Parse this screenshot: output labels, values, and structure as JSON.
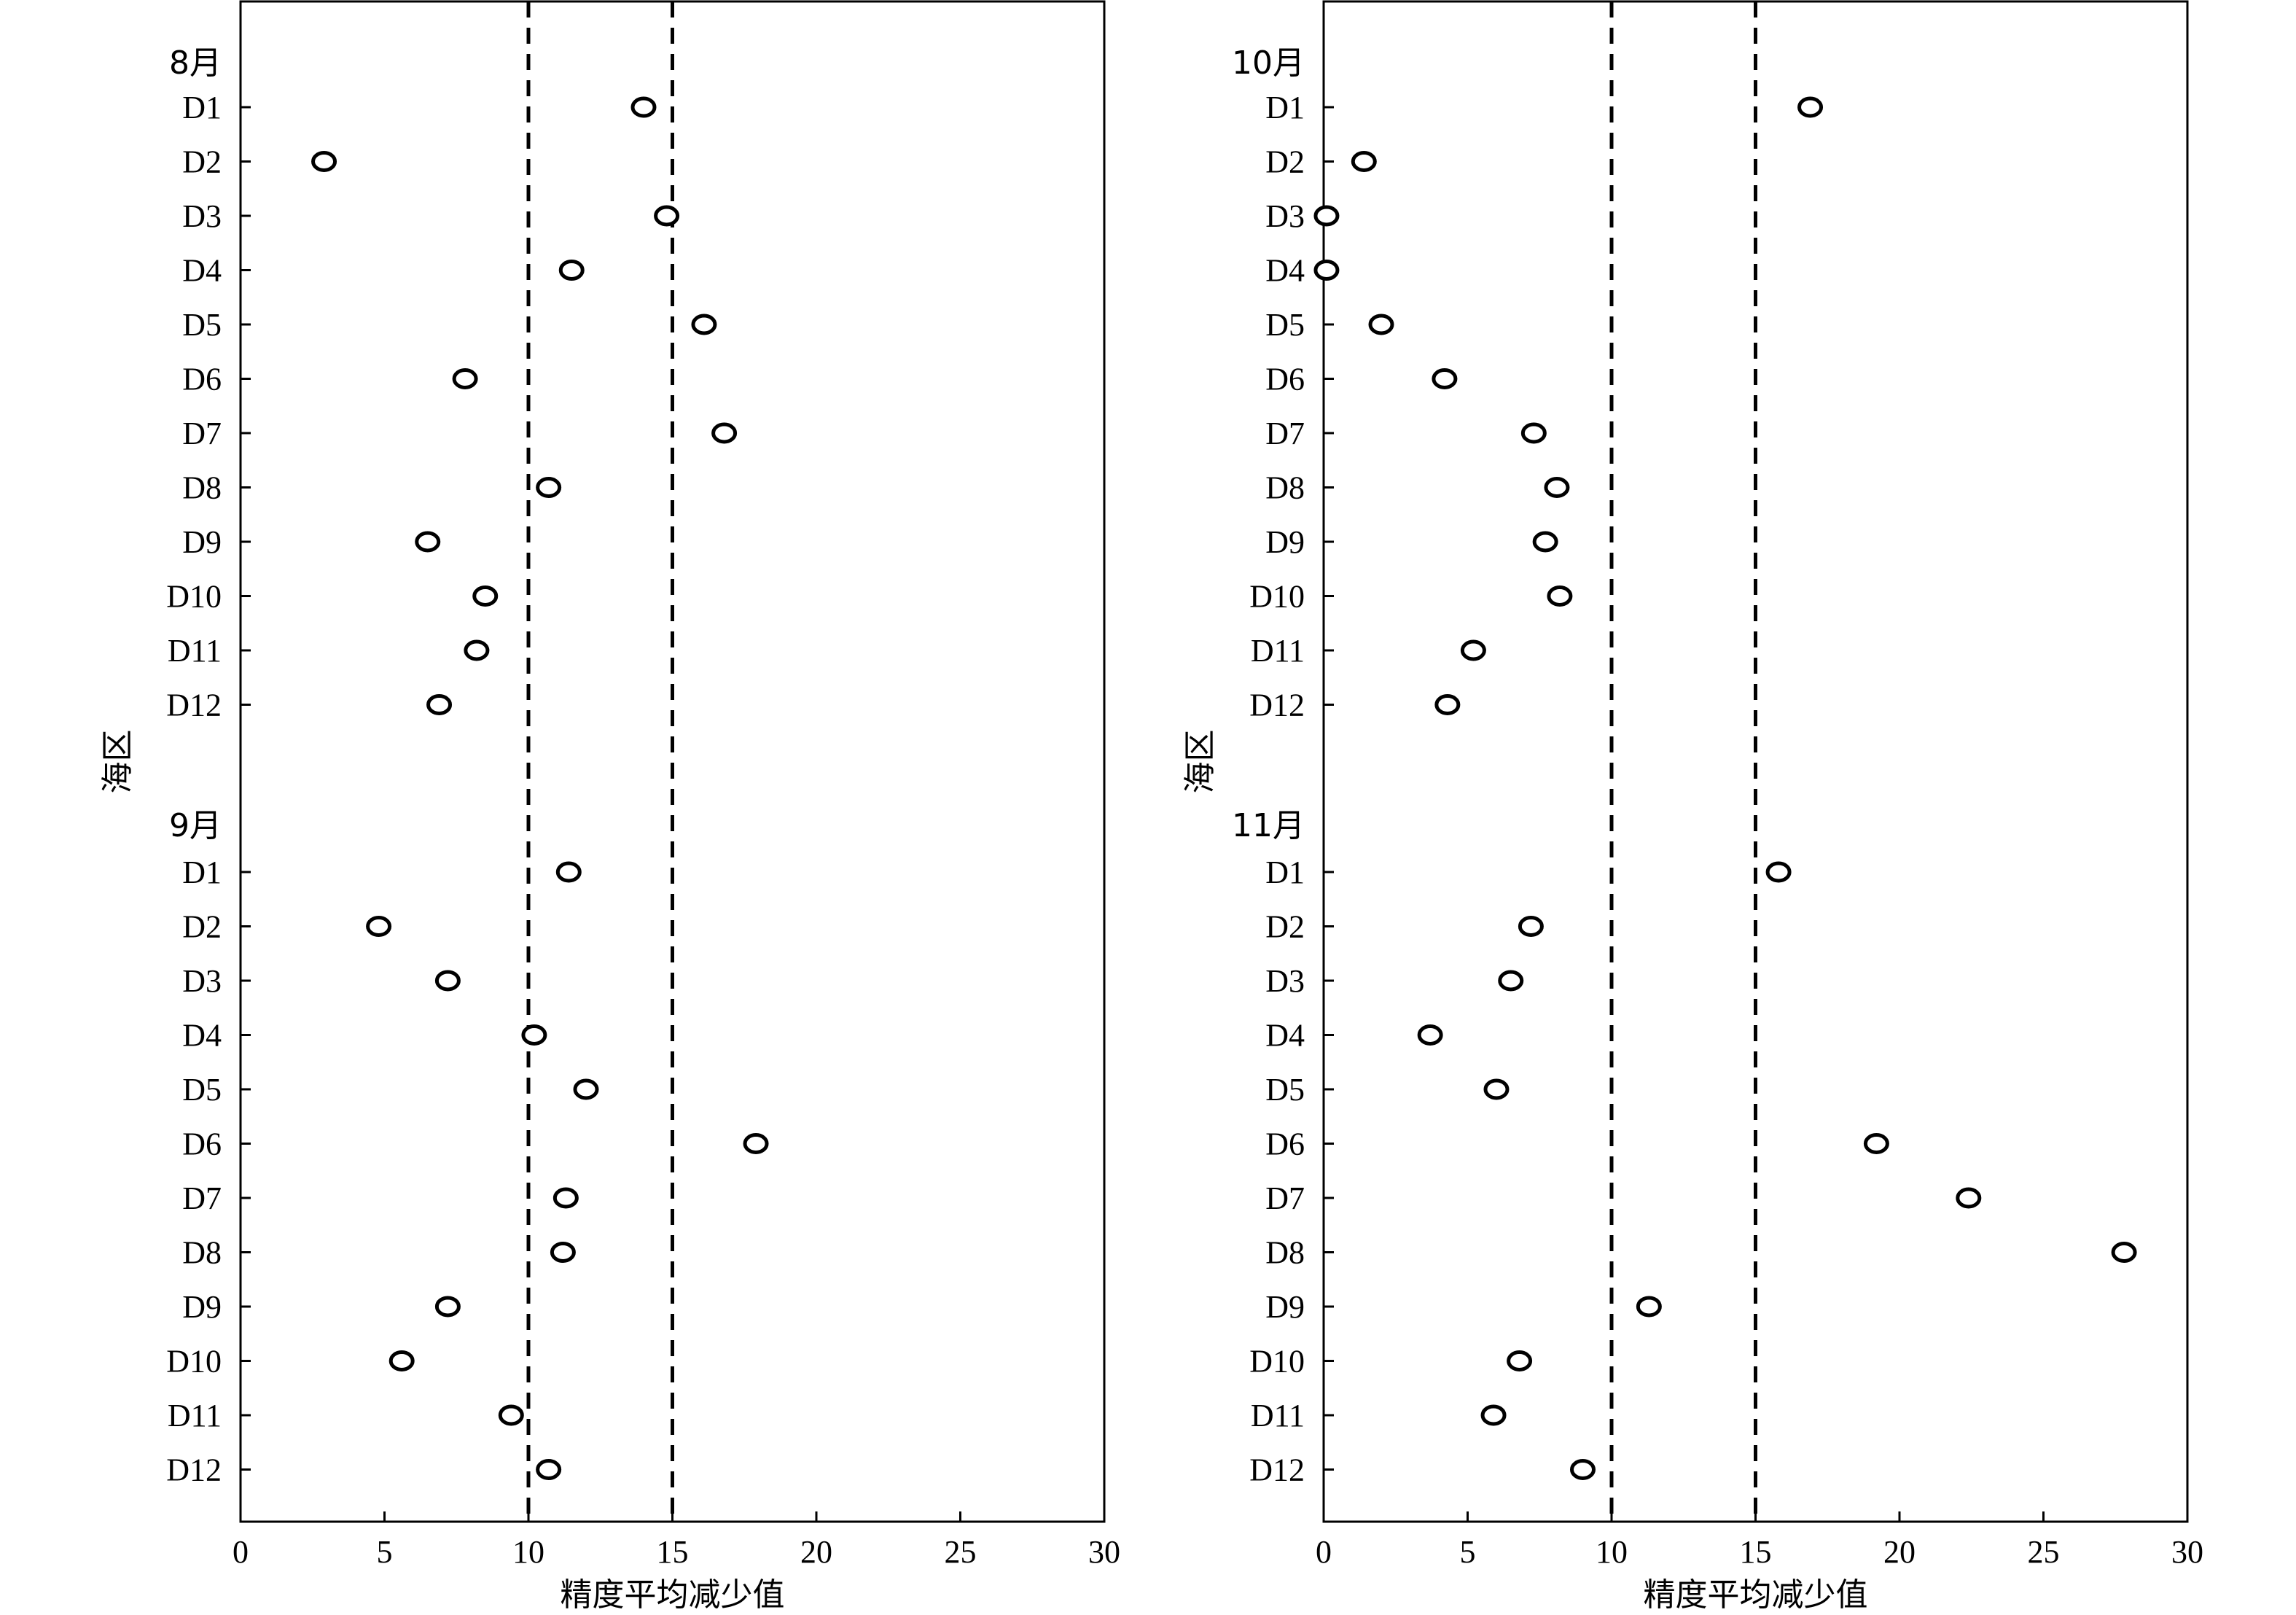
{
  "chart_data": [
    {
      "type": "scatter",
      "xlabel": "精度平均减少值",
      "ylabel": "海区",
      "xlim": [
        0,
        30
      ],
      "xticks": [
        0,
        5,
        10,
        15,
        20,
        25,
        30
      ],
      "reference_lines_x": [
        10,
        15
      ],
      "grid": false,
      "groups": [
        {
          "name": "8月",
          "categories": [
            "D1",
            "D2",
            "D3",
            "D4",
            "D5",
            "D6",
            "D7",
            "D8",
            "D9",
            "D10",
            "D11",
            "D12"
          ],
          "values": [
            14.0,
            2.9,
            14.8,
            11.5,
            16.1,
            7.8,
            16.8,
            10.7,
            6.5,
            8.5,
            8.2,
            6.9
          ]
        },
        {
          "name": "9月",
          "categories": [
            "D1",
            "D2",
            "D3",
            "D4",
            "D5",
            "D6",
            "D7",
            "D8",
            "D9",
            "D10",
            "D11",
            "D12"
          ],
          "values": [
            11.4,
            4.8,
            7.2,
            10.2,
            12.0,
            17.9,
            11.3,
            11.2,
            7.2,
            5.6,
            9.4,
            10.7
          ]
        }
      ]
    },
    {
      "type": "scatter",
      "xlabel": "精度平均减少值",
      "ylabel": "海区",
      "xlim": [
        0,
        30
      ],
      "xticks": [
        0,
        5,
        10,
        15,
        20,
        25,
        30
      ],
      "reference_lines_x": [
        10,
        15
      ],
      "grid": false,
      "groups": [
        {
          "name": "10月",
          "categories": [
            "D1",
            "D2",
            "D3",
            "D4",
            "D5",
            "D6",
            "D7",
            "D8",
            "D9",
            "D10",
            "D11",
            "D12"
          ],
          "values": [
            16.9,
            1.4,
            0.1,
            0.1,
            2.0,
            4.2,
            7.3,
            8.1,
            7.7,
            8.2,
            5.2,
            4.3
          ]
        },
        {
          "name": "11月",
          "categories": [
            "D1",
            "D2",
            "D3",
            "D4",
            "D5",
            "D6",
            "D7",
            "D8",
            "D9",
            "D10",
            "D11",
            "D12"
          ],
          "values": [
            15.8,
            7.2,
            6.5,
            3.7,
            6.0,
            19.2,
            22.4,
            27.8,
            11.3,
            6.8,
            5.9,
            9.0
          ]
        }
      ]
    }
  ]
}
